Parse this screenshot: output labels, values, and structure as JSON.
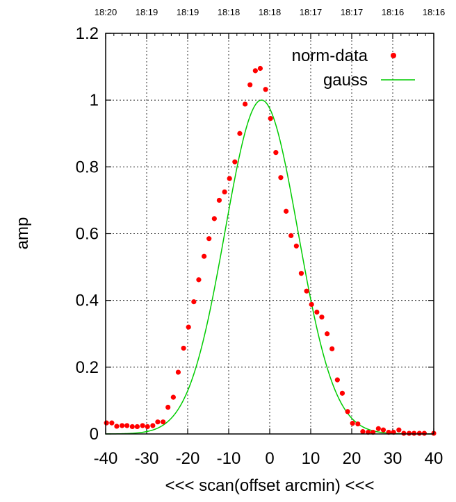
{
  "chart_data": {
    "type": "scatter",
    "xlabel": "<<< scan(offset arcmin) <<<",
    "ylabel": "amp",
    "xlim": [
      -40,
      40
    ],
    "ylim": [
      0,
      1.2
    ],
    "x_ticks": [
      -40,
      -30,
      -20,
      -10,
      0,
      10,
      20,
      30,
      40
    ],
    "y_ticks": [
      0,
      0.2,
      0.4,
      0.6,
      0.8,
      1,
      1.2
    ],
    "y_tick_labels": [
      "0",
      "0.2",
      "0.4",
      "0.6",
      "0.8",
      "1",
      "1.2"
    ],
    "top_time_labels": [
      "18:20",
      "18:19",
      "18:19",
      "18:18",
      "18:18",
      "18:17",
      "18:17",
      "18:16",
      "18:16"
    ],
    "grid": true,
    "legend_position": "top-right",
    "series": [
      {
        "name": "norm-data",
        "style": "points",
        "color": "#ff0000",
        "x": [
          -39.8,
          -38.5,
          -37.3,
          -36.0,
          -34.8,
          -33.5,
          -32.3,
          -31.0,
          -29.8,
          -28.5,
          -27.3,
          -26.0,
          -24.8,
          -23.5,
          -22.3,
          -21.0,
          -19.8,
          -18.5,
          -17.3,
          -16.0,
          -14.8,
          -13.5,
          -12.3,
          -11.0,
          -9.8,
          -8.5,
          -7.3,
          -6.0,
          -4.8,
          -3.5,
          -2.3,
          -1.0,
          0.2,
          1.5,
          2.7,
          4.0,
          5.2,
          6.5,
          7.7,
          9.0,
          10.2,
          11.5,
          12.7,
          14.0,
          15.2,
          16.5,
          17.7,
          19.0,
          20.2,
          21.5,
          22.7,
          24.0,
          25.2,
          26.5,
          27.7,
          29.0,
          30.2,
          31.5,
          32.7,
          34.0,
          35.2,
          36.5,
          37.7,
          40.0
        ],
        "y": [
          0.033,
          0.033,
          0.023,
          0.025,
          0.025,
          0.022,
          0.022,
          0.025,
          0.022,
          0.025,
          0.036,
          0.036,
          0.08,
          0.11,
          0.185,
          0.257,
          0.32,
          0.396,
          0.462,
          0.532,
          0.585,
          0.645,
          0.7,
          0.725,
          0.765,
          0.815,
          0.9,
          0.988,
          1.046,
          1.088,
          1.095,
          1.032,
          0.945,
          0.843,
          0.768,
          0.667,
          0.594,
          0.563,
          0.481,
          0.428,
          0.388,
          0.365,
          0.35,
          0.3,
          0.255,
          0.162,
          0.122,
          0.067,
          0.032,
          0.03,
          0.007,
          0.005,
          0.005,
          0.016,
          0.012,
          0.005,
          0.005,
          0.012,
          0.002,
          0.002,
          0.002,
          0.002,
          0.002,
          0.002
        ]
      },
      {
        "name": "gauss",
        "style": "line",
        "color": "#00cc00",
        "center": -2.0,
        "sigma": 8.9,
        "amplitude": 1.0
      }
    ]
  }
}
